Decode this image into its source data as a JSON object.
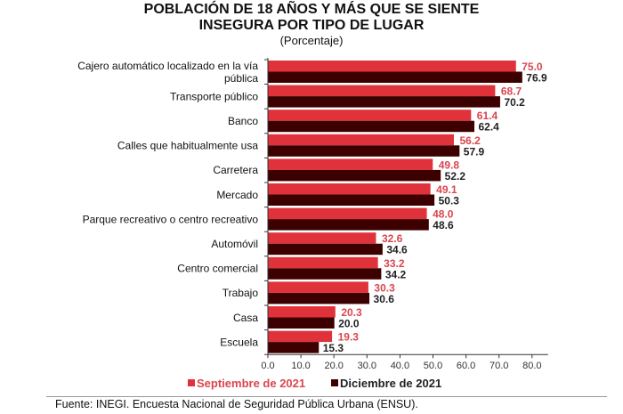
{
  "title_line1": "POBLACIÓN DE 18 AÑOS Y MÁS QUE SE SIENTE",
  "title_line2": "INSEGURA POR TIPO DE LUGAR",
  "subtitle": "(Porcentaje)",
  "source": "Fuente: INEGI. Encuesta Nacional de Seguridad Pública Urbana (ENSU).",
  "chart_data": {
    "type": "bar",
    "orientation": "horizontal",
    "title": "POBLACIÓN DE 18 AÑOS Y MÁS QUE SE SIENTE INSEGURA POR TIPO DE LUGAR",
    "subtitle": "(Porcentaje)",
    "categories": [
      [
        "Cajero automático localizado en la vía",
        "pública"
      ],
      [
        "Transporte público"
      ],
      [
        "Banco"
      ],
      [
        "Calles que habitualmente usa"
      ],
      [
        "Carretera"
      ],
      [
        "Mercado"
      ],
      [
        "Parque recreativo o centro recreativo"
      ],
      [
        "Automóvil"
      ],
      [
        "Centro comercial"
      ],
      [
        "Trabajo"
      ],
      [
        "Casa"
      ],
      [
        "Escuela"
      ]
    ],
    "series": [
      {
        "name": "Septiembre de 2021",
        "color": "#e0323a",
        "label_color": "#d9464e",
        "values": [
          75.0,
          68.7,
          61.4,
          56.2,
          49.8,
          49.1,
          48.0,
          32.6,
          33.2,
          30.3,
          20.3,
          19.3
        ]
      },
      {
        "name": "Diciembre de 2021",
        "color": "#3d0000",
        "label_color": "#222222",
        "values": [
          76.9,
          70.2,
          62.4,
          57.9,
          52.2,
          50.3,
          48.6,
          34.6,
          34.2,
          30.6,
          20.0,
          15.3
        ]
      }
    ],
    "xlim": [
      0,
      85
    ],
    "xticks": [
      "0.0",
      "10.0",
      "20.0",
      "30.0",
      "40.0",
      "50.0",
      "60.0",
      "70.0",
      "80.0"
    ],
    "grid": false,
    "legend": "bottom"
  }
}
